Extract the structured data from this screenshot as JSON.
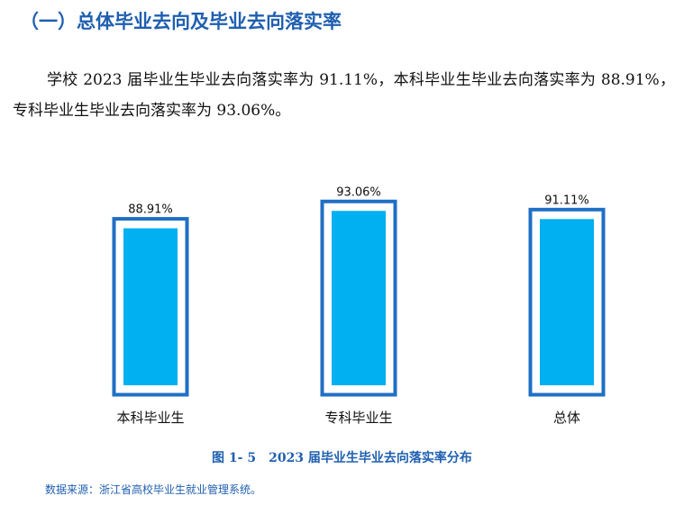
{
  "section": {
    "title": "（一）总体毕业去向及毕业去向落实率",
    "paragraph": "学校 2023 届毕业生毕业去向落实率为 91.11%，本科毕业生毕业去向落实率为 88.91%，专科毕业生毕业去向落实率为 93.06%。"
  },
  "chart_data": {
    "type": "bar",
    "categories": [
      "本科毕业生",
      "专科毕业生",
      "总体"
    ],
    "values": [
      88.91,
      93.06,
      91.11
    ],
    "data_labels": [
      "88.91%",
      "93.06%",
      "91.11%"
    ],
    "unit": "%",
    "title": "",
    "xlabel": "",
    "ylabel": "",
    "ylim": [
      0,
      100
    ],
    "grid": false,
    "legend": "none",
    "colors": {
      "bar_fill": "#00b0f0",
      "bar_outline": "#1f6fc5"
    }
  },
  "figure": {
    "caption": "图 1- 5　2023 届毕业生毕业去向落实率分布",
    "source": "数据来源：浙江省高校毕业生就业管理系统。"
  },
  "colors": {
    "heading": "#1f5fb0",
    "text": "#111111"
  }
}
